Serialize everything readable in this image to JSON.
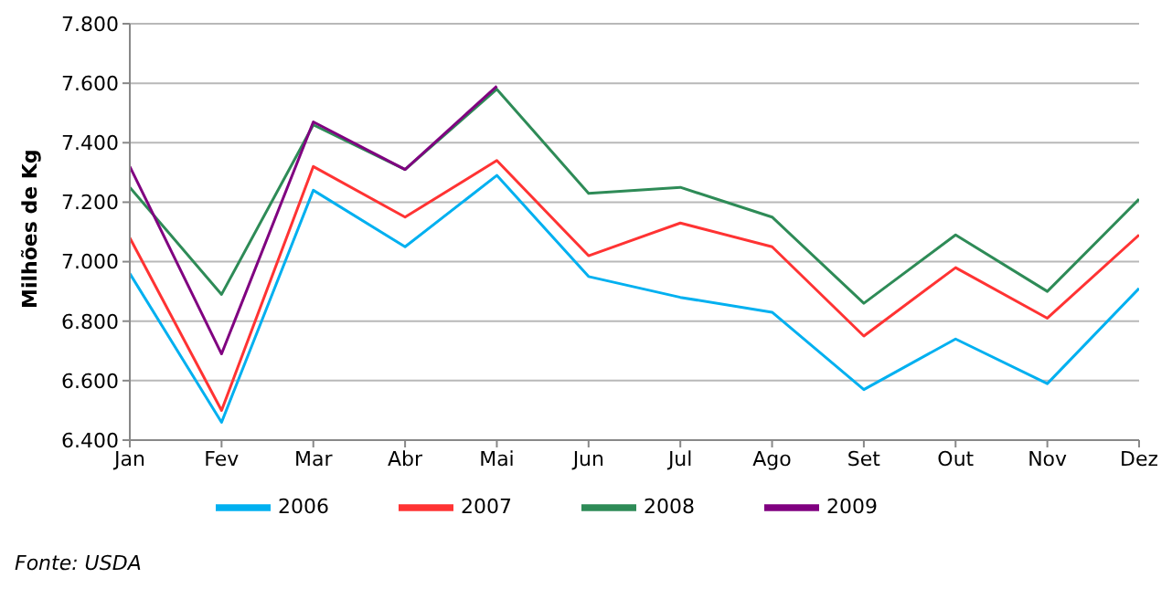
{
  "chart_data": {
    "type": "line",
    "ylabel": "Milhões de Kg",
    "categories": [
      "Jan",
      "Fev",
      "Mar",
      "Abr",
      "Mai",
      "Jun",
      "Jul",
      "Ago",
      "Set",
      "Out",
      "Nov",
      "Dez"
    ],
    "series": [
      {
        "name": "2006",
        "color": "#00b0f0",
        "values": [
          6960,
          6460,
          7240,
          7050,
          7290,
          6950,
          6880,
          6830,
          6570,
          6740,
          6590,
          6910
        ]
      },
      {
        "name": "2007",
        "color": "#ff3333",
        "values": [
          7080,
          6500,
          7320,
          7150,
          7340,
          7020,
          7130,
          7050,
          6750,
          6980,
          6810,
          7090
        ]
      },
      {
        "name": "2008",
        "color": "#2e8b57",
        "values": [
          7250,
          6890,
          7460,
          7310,
          7580,
          7230,
          7250,
          7150,
          6860,
          7090,
          6900,
          7210
        ]
      },
      {
        "name": "2009",
        "color": "#800080",
        "values": [
          7320,
          6690,
          7470,
          7310,
          7590,
          null,
          null,
          null,
          null,
          null,
          null,
          null
        ]
      }
    ],
    "ylim": [
      6400,
      7800
    ],
    "yticks": [
      {
        "value": 6400,
        "label": "6.400"
      },
      {
        "value": 6600,
        "label": "6.600"
      },
      {
        "value": 6800,
        "label": "6.800"
      },
      {
        "value": 7000,
        "label": "7.000"
      },
      {
        "value": 7200,
        "label": "7.200"
      },
      {
        "value": 7400,
        "label": "7.400"
      },
      {
        "value": 7600,
        "label": "7.600"
      },
      {
        "value": 7800,
        "label": "7.800"
      }
    ],
    "grid": "y",
    "legend": "bottom",
    "marker": "none",
    "line_style": "solid",
    "annotations": [
      "Fonte: USDA"
    ]
  }
}
